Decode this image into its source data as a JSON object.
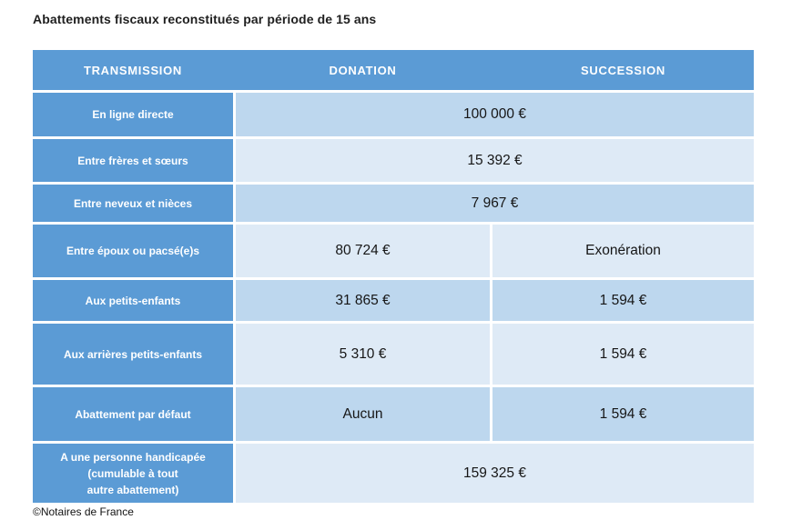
{
  "page_title": "Abattements fiscaux reconstitués par période de 15 ans",
  "source_note": "©Notaires de France",
  "colors": {
    "header_blue": "#5b9bd5",
    "row_blue_medium": "#bdd7ee",
    "row_blue_light": "#deeaf6",
    "header_text": "#ffffff",
    "value_text": "#161616",
    "gap_white": "#ffffff"
  },
  "chart_data": {
    "type": "table",
    "title": "Abattements fiscaux reconstitués par période de 15 ans",
    "columns": [
      "TRANSMISSION",
      "DONATION",
      "SUCCESSION"
    ],
    "rows": [
      {
        "transmission": "En ligne directe",
        "donation": "100 000 €",
        "succession": "100 000 €",
        "merged": true
      },
      {
        "transmission": "Entre frères et sœurs",
        "donation": "15 392 €",
        "succession": "15 392 €",
        "merged": true
      },
      {
        "transmission": "Entre neveux et nièces",
        "donation": "7 967 €",
        "succession": "7 967 €",
        "merged": true
      },
      {
        "transmission": "Entre époux ou pacsé(e)s",
        "donation": "80 724 €",
        "succession": "Exonération",
        "merged": false
      },
      {
        "transmission": "Aux petits-enfants",
        "donation": "31 865 €",
        "succession": "1 594 €",
        "merged": false
      },
      {
        "transmission": "Aux arrières petits-enfants",
        "donation": "5 310 €",
        "succession": "1 594 €",
        "merged": false
      },
      {
        "transmission": "Abattement par défaut",
        "donation": "Aucun",
        "succession": "1 594 €",
        "merged": false
      },
      {
        "transmission": "A une personne handicapée (cumulable à tout autre abattement)",
        "label_lines": [
          "A une personne handicapée",
          "(cumulable à tout",
          "autre abattement)"
        ],
        "donation": "159 325 €",
        "succession": "159 325 €",
        "merged": true
      }
    ],
    "source": "©Notaires de France"
  }
}
